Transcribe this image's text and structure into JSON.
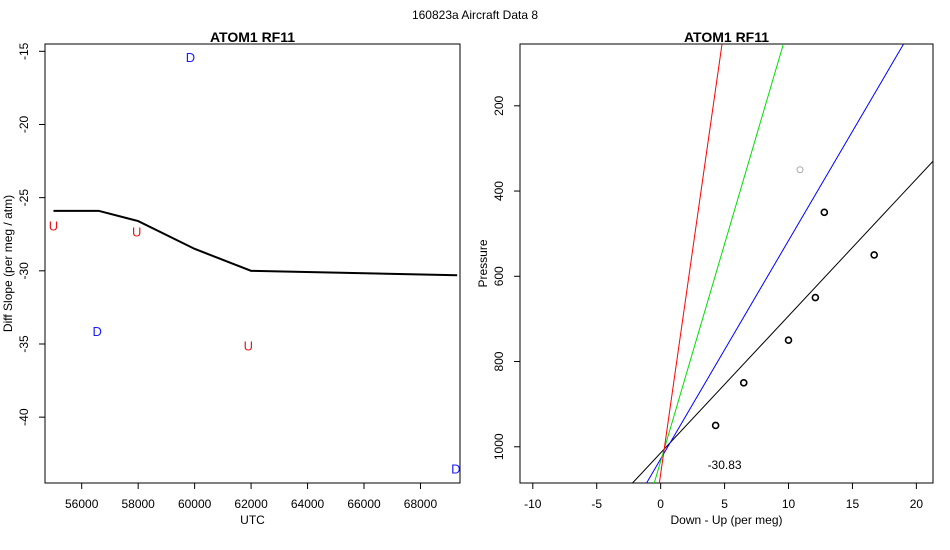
{
  "figure": {
    "title": "160823a   Aircraft Data 8"
  },
  "chart_data": [
    {
      "type": "line",
      "title": "ATOM1 RF11",
      "xlabel": "UTC",
      "ylabel": "Diff Slope (per meg / atm)",
      "xlim": [
        54700,
        69400
      ],
      "ylim": [
        -44.5,
        -14.5
      ],
      "xticks": [
        56000,
        58000,
        60000,
        62000,
        64000,
        66000,
        68000
      ],
      "yticks": [
        -15,
        -20,
        -25,
        -30,
        -35,
        -40
      ],
      "series": [
        {
          "type": "line",
          "color": "#000000",
          "x": [
            55000,
            56600,
            58000,
            60000,
            62000,
            69300
          ],
          "y": [
            -25.9,
            -25.9,
            -26.6,
            -28.5,
            -30.0,
            -30.3
          ]
        }
      ],
      "text_points": [
        {
          "x": 55000,
          "y": -26.9,
          "label": "U",
          "color": "#e8161b"
        },
        {
          "x": 57950,
          "y": -27.3,
          "label": "U",
          "color": "#e8161b"
        },
        {
          "x": 59850,
          "y": -15.4,
          "label": "D",
          "color": "#1a1aff"
        },
        {
          "x": 56550,
          "y": -34.1,
          "label": "D",
          "color": "#1a1aff"
        },
        {
          "x": 61900,
          "y": -35.1,
          "label": "U",
          "color": "#e8161b"
        },
        {
          "x": 69250,
          "y": -43.5,
          "label": "D",
          "color": "#1a1aff"
        }
      ]
    },
    {
      "type": "scatter",
      "title": "ATOM1 RF11",
      "xlabel": "Down - Up (per meg)",
      "ylabel": "Pressure",
      "xlim": [
        -11,
        21.3
      ],
      "ylim": [
        1085,
        55
      ],
      "y_reversed": true,
      "xticks": [
        -10,
        -5,
        0,
        5,
        10,
        15,
        20
      ],
      "yticks": [
        200,
        400,
        600,
        800,
        1000
      ],
      "points": [
        {
          "x": 4.3,
          "y": 950
        },
        {
          "x": 6.5,
          "y": 850
        },
        {
          "x": 10.0,
          "y": 750
        },
        {
          "x": 12.1,
          "y": 650
        },
        {
          "x": 16.7,
          "y": 550
        },
        {
          "x": 12.8,
          "y": 450
        }
      ],
      "excluded_points": [
        {
          "x": 10.9,
          "y": 350
        }
      ],
      "lines": [
        {
          "color": "#000000",
          "x": [
            -2.2,
            21.3
          ],
          "y": [
            1085,
            330
          ]
        },
        {
          "color": "#0000ff",
          "x": [
            -1.1,
            19.0
          ],
          "y": [
            1085,
            55
          ]
        },
        {
          "color": "#00dd00",
          "x": [
            -0.5,
            9.6
          ],
          "y": [
            1085,
            55
          ]
        },
        {
          "color": "#ff0000",
          "x": [
            -0.1,
            4.8
          ],
          "y": [
            1085,
            55
          ]
        }
      ],
      "annotation": {
        "x": 5.0,
        "y": 1040,
        "label": "-30.83"
      }
    }
  ]
}
